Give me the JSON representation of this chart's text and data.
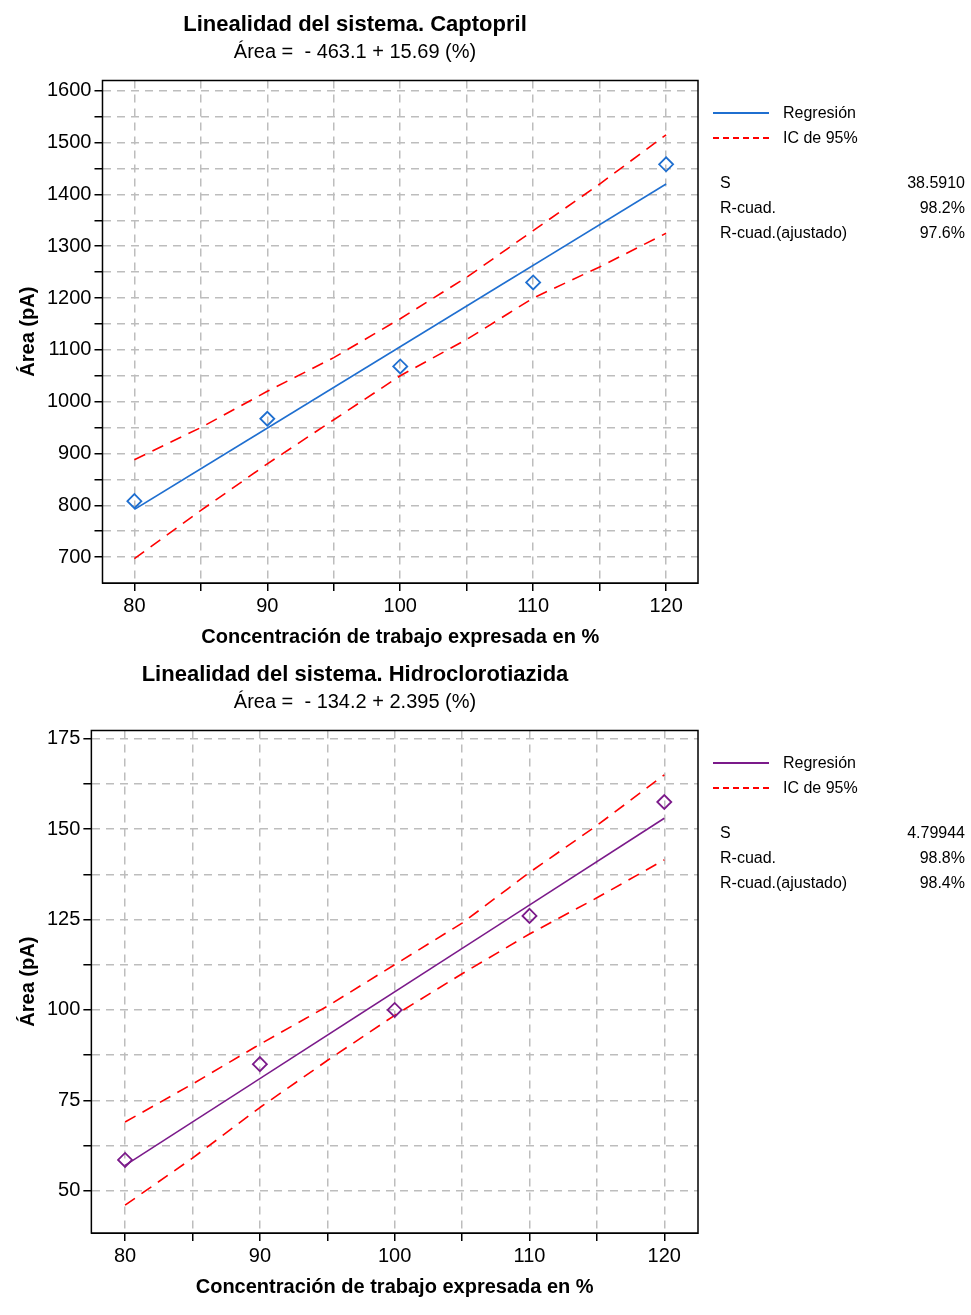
{
  "chart_data": [
    {
      "type": "line",
      "title": "Linealidad del sistema. Captopril",
      "subtitle": "Área =  - 463.1 + 15.69 (%)",
      "xlabel": "Concentración de trabajo expresada en %",
      "ylabel": "Área (pA)",
      "xlim": [
        77.6,
        122.4
      ],
      "xticks": [
        80,
        {
          "value": 85,
          "label": null
        },
        90,
        {
          "value": 95,
          "label": null
        },
        100,
        {
          "value": 105,
          "label": null
        },
        110,
        {
          "value": 115,
          "label": null
        },
        120
      ],
      "ylim": [
        650,
        1620
      ],
      "yticks": [
        700,
        {
          "value": 750,
          "label": null
        },
        800,
        {
          "value": 850,
          "label": null
        },
        900,
        {
          "value": 950,
          "label": null
        },
        1000,
        {
          "value": 1050,
          "label": null
        },
        1100,
        {
          "value": 1150,
          "label": null
        },
        1200,
        {
          "value": 1250,
          "label": null
        },
        1300,
        {
          "value": 1350,
          "label": null
        },
        1400,
        {
          "value": 1450,
          "label": null
        },
        1500,
        {
          "value": 1550,
          "label": null
        },
        1600
      ],
      "grid": true,
      "legend": "right",
      "series": [
        {
          "type": "scatter",
          "color": "#1f6fd0",
          "marker": "diamond",
          "x": [
            80,
            90,
            100,
            110,
            120
          ],
          "values": [
            808,
            967,
            1068,
            1230,
            1458
          ]
        },
        {
          "name": "Regresión",
          "color": "#1f6fd0",
          "line_style": "solid",
          "x": [
            80,
            120
          ],
          "values": [
            792,
            1420
          ]
        },
        {
          "name": "IC de 95%",
          "color": "#ff0000",
          "line_style": "dashed",
          "x": [
            80,
            85,
            90,
            95,
            100,
            105,
            110,
            115,
            120
          ],
          "values": [
            888,
            950,
            1020,
            1085,
            1160,
            1240,
            1330,
            1420,
            1515
          ]
        },
        {
          "color": "#ff0000",
          "line_style": "dashed",
          "x": [
            80,
            85,
            90,
            95,
            100,
            105,
            110,
            115,
            120
          ],
          "values": [
            697,
            790,
            880,
            965,
            1050,
            1120,
            1200,
            1260,
            1325
          ]
        }
      ],
      "annotations": [
        "S",
        "38.5910",
        "R-cuad.",
        "98.2%",
        "R-cuad.(ajustado)",
        "97.6%"
      ]
    },
    {
      "type": "line",
      "title": "Linealidad del sistema. Hidroclorotiazida",
      "subtitle": "Área =  - 134.2 + 2.395 (%)",
      "xlabel": "Concentración de trabajo expresada en %",
      "ylabel": "Área (pA)",
      "xlim": [
        77.5,
        122.5
      ],
      "xticks": [
        80,
        {
          "value": 85,
          "label": null
        },
        90,
        {
          "value": 95,
          "label": null
        },
        100,
        {
          "value": 105,
          "label": null
        },
        110,
        {
          "value": 115,
          "label": null
        },
        120
      ],
      "ylim": [
        38.3,
        177.3
      ],
      "yticks": [
        50,
        {
          "value": 62.5,
          "label": null
        },
        75,
        {
          "value": 87.5,
          "label": null
        },
        100,
        {
          "value": 112.5,
          "label": null
        },
        125,
        {
          "value": 137.5,
          "label": null
        },
        150,
        {
          "value": 162.5,
          "label": null
        },
        175
      ],
      "grid": true,
      "legend": "right",
      "series": [
        {
          "type": "scatter",
          "color": "#7b1a8a",
          "marker": "diamond",
          "x": [
            80,
            90,
            100,
            110,
            120
          ],
          "values": [
            58.5,
            85,
            100,
            126,
            157.5
          ]
        },
        {
          "name": "Regresión",
          "color": "#7b1a8a",
          "line_style": "solid",
          "x": [
            80,
            120
          ],
          "values": [
            57,
            153
          ]
        },
        {
          "name": "IC de 95%",
          "color": "#ff0000",
          "line_style": "dashed",
          "x": [
            80,
            85,
            90,
            95,
            100,
            105,
            110,
            115,
            120
          ],
          "values": [
            69,
            79.5,
            90.5,
            101,
            112.5,
            124,
            138,
            151,
            165
          ]
        },
        {
          "color": "#ff0000",
          "line_style": "dashed",
          "x": [
            80,
            85,
            90,
            95,
            100,
            105,
            110,
            115,
            120
          ],
          "values": [
            46,
            59,
            73,
            86,
            98.5,
            110,
            121,
            131,
            141.5
          ]
        }
      ],
      "annotations": [
        "S",
        "4.79944",
        "R-cuad.",
        "98.8%",
        "R-cuad.(ajustado)",
        "98.4%"
      ]
    }
  ]
}
